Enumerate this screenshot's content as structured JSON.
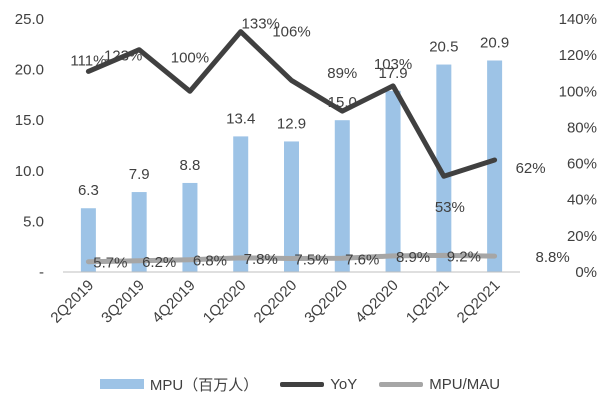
{
  "chart_data": {
    "type": "bar",
    "categories": [
      "2Q2019",
      "3Q2019",
      "4Q2019",
      "1Q2020",
      "2Q2020",
      "3Q2020",
      "4Q2020",
      "1Q2021",
      "2Q2021"
    ],
    "series": [
      {
        "name": "MPU（百万人）",
        "type": "bar",
        "axis": "left",
        "values": [
          6.3,
          7.9,
          8.8,
          13.4,
          12.9,
          15.0,
          17.9,
          20.5,
          20.9
        ],
        "labels": [
          "6.3",
          "7.9",
          "8.8",
          "13.4",
          "12.9",
          "15.0",
          "17.9",
          "20.5",
          "20.9"
        ],
        "color": "#9dc3e6"
      },
      {
        "name": "YoY",
        "type": "line",
        "axis": "right",
        "values": [
          111,
          123,
          100,
          133,
          106,
          89,
          103,
          53,
          62
        ],
        "labels": [
          "111%",
          "123%",
          "100%",
          "133%",
          "106%",
          "89%",
          "103%",
          "53%",
          "62%"
        ],
        "color": "#404040"
      },
      {
        "name": "MPU/MAU",
        "type": "line",
        "axis": "right",
        "values": [
          5.7,
          6.2,
          6.8,
          7.8,
          7.5,
          7.6,
          8.9,
          9.2,
          8.8
        ],
        "labels": [
          "5.7%",
          "6.2%",
          "6.8%",
          "7.8%",
          "7.5%",
          "7.6%",
          "8.9%",
          "9.2%",
          "8.8%"
        ],
        "color": "#a6a6a6"
      }
    ],
    "y_left": {
      "ylim": [
        0,
        25
      ],
      "ticks": [
        0,
        5,
        10,
        15,
        20,
        25
      ],
      "tick_labels": [
        "-",
        "5.0",
        "10.0",
        "15.0",
        "20.0",
        "25.0"
      ]
    },
    "y_right": {
      "ylim": [
        0,
        140
      ],
      "ticks": [
        0,
        20,
        40,
        60,
        80,
        100,
        120,
        140
      ],
      "tick_labels": [
        "0%",
        "20%",
        "40%",
        "60%",
        "80%",
        "100%",
        "120%",
        "140%"
      ]
    },
    "title": "",
    "xlabel": "",
    "grid": false,
    "legend_position": "bottom"
  }
}
